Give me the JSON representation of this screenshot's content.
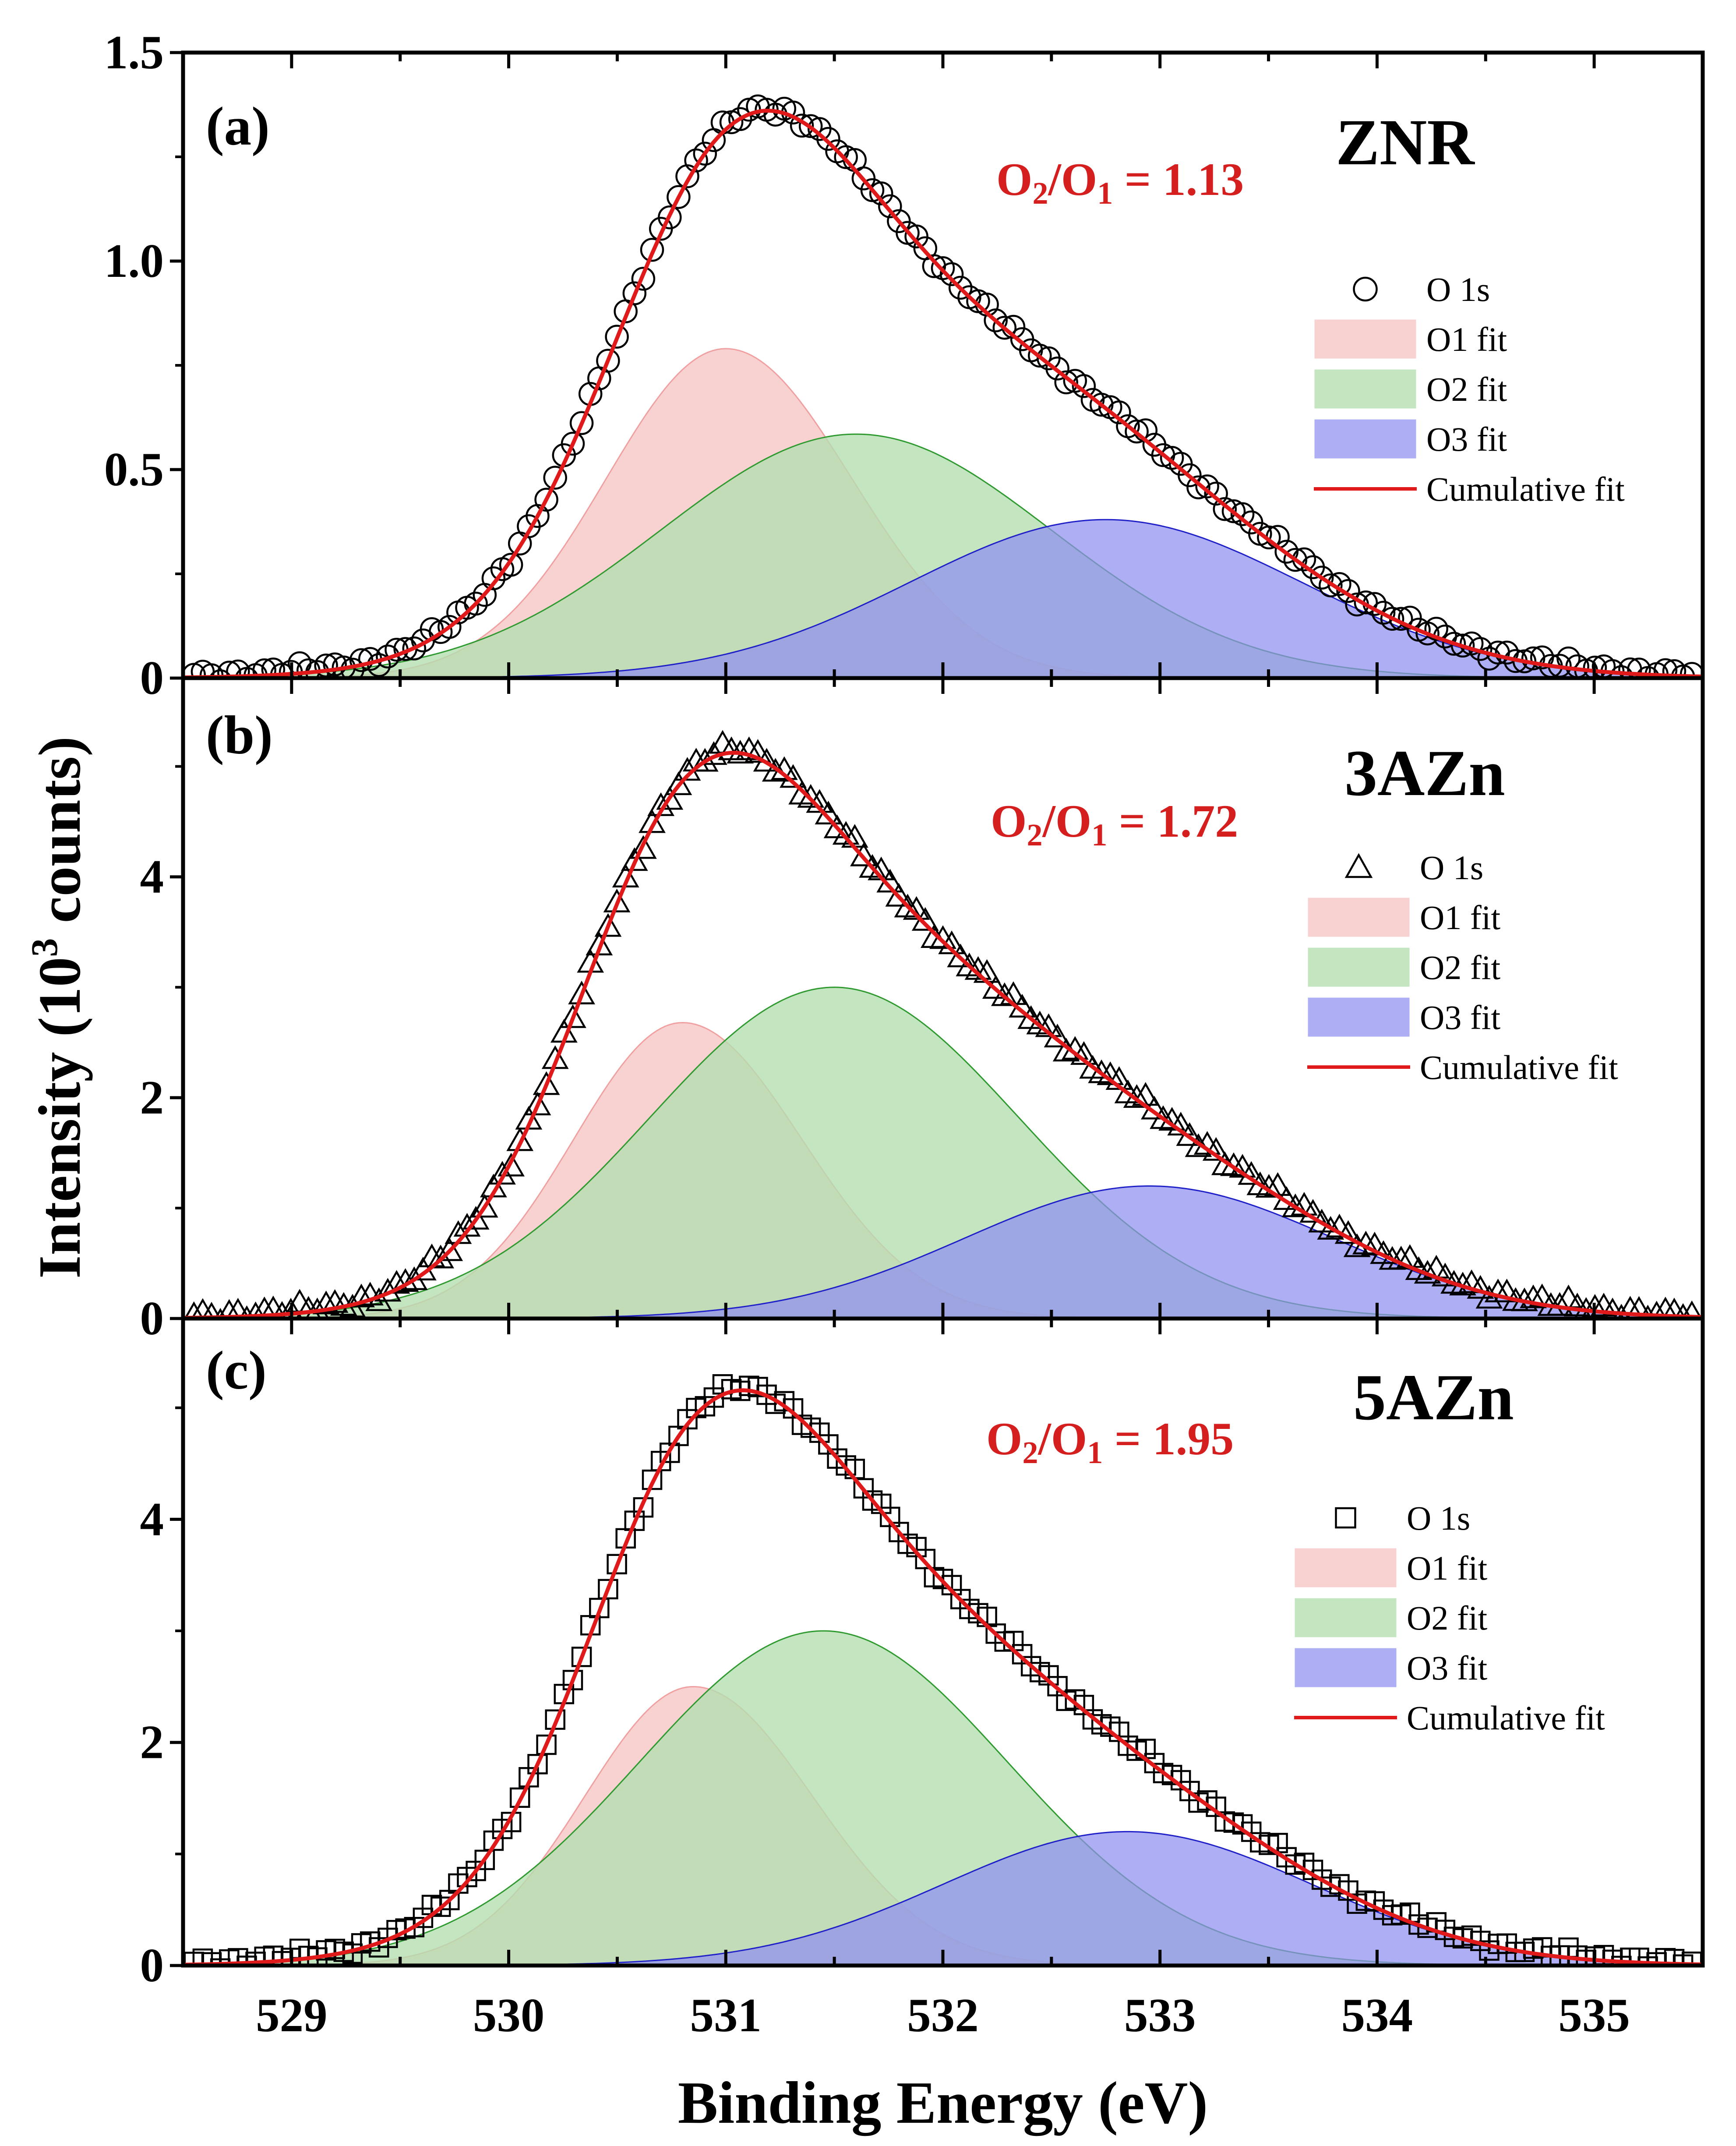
{
  "chart_data": {
    "type": "line",
    "xlabel": "Binding Energy  (eV)",
    "ylabel": "Intensity (10",
    "ylabel_sup": "3",
    "ylabel_end": " counts)",
    "xlim": [
      528.5,
      535.5
    ],
    "xticks": [
      529,
      530,
      531,
      532,
      533,
      534,
      535
    ],
    "series_names": [
      "O 1s",
      "O1 fit",
      "O2 fit",
      "O3 fit",
      "Cumulative fit"
    ],
    "colors": {
      "o1_fill": "#f7c9c9",
      "o1_line": "#f0a0a0",
      "o2_fill": "#b4dfb0",
      "o2_line": "#2f9a2f",
      "o3_fill": "#8f8ff0",
      "o3_line": "#2020c8",
      "cumulative": "#e01a1a",
      "ratio_text": "#d51f1f"
    },
    "panels": [
      {
        "letter": "(a)",
        "sample": "ZNR",
        "ratio_label": {
          "o": "O",
          "sub2": "2",
          "slash": "/O",
          "sub1": "1",
          "value": " = 1.13"
        },
        "ylim": [
          0,
          1.5
        ],
        "yticks": [
          0,
          0.5,
          1.0,
          1.5
        ],
        "ytick_labels": [
          "0",
          "0.5",
          "1.0",
          "1.5"
        ],
        "marker": "circle",
        "peaks": [
          {
            "name": "O1 fit",
            "center": 531.0,
            "height": 0.79,
            "sigma_left": 0.55,
            "sigma_right": 0.58
          },
          {
            "name": "O2 fit",
            "center": 531.6,
            "height": 0.585,
            "sigma_left": 0.9,
            "sigma_right": 0.9
          },
          {
            "name": "O3 fit",
            "center": 532.75,
            "height": 0.38,
            "sigma_left": 0.9,
            "sigma_right": 0.9
          }
        ]
      },
      {
        "letter": "(b)",
        "sample": "3AZn",
        "ratio_label": {
          "o": "O",
          "sub2": "2",
          "slash": "/O",
          "sub1": "1",
          "value": " = 1.72"
        },
        "ylim": [
          0,
          5.8
        ],
        "yticks": [
          0,
          2,
          4
        ],
        "ytick_labels": [
          "0",
          "2",
          "4"
        ],
        "marker": "triangle",
        "peaks": [
          {
            "name": "O1 fit",
            "center": 530.8,
            "height": 2.68,
            "sigma_left": 0.5,
            "sigma_right": 0.55
          },
          {
            "name": "O2 fit",
            "center": 531.5,
            "height": 3.0,
            "sigma_left": 0.85,
            "sigma_right": 0.85
          },
          {
            "name": "O3 fit",
            "center": 532.95,
            "height": 1.2,
            "sigma_left": 0.85,
            "sigma_right": 0.85
          }
        ]
      },
      {
        "letter": "(c)",
        "sample": "5AZn",
        "ratio_label": {
          "o": "O",
          "sub2": "2",
          "slash": "/O",
          "sub1": "1",
          "value": " = 1.95"
        },
        "ylim": [
          0,
          5.8
        ],
        "yticks": [
          0,
          2,
          4
        ],
        "ytick_labels": [
          "0",
          "2",
          "4"
        ],
        "marker": "square",
        "peaks": [
          {
            "name": "O1 fit",
            "center": 530.85,
            "height": 2.5,
            "sigma_left": 0.5,
            "sigma_right": 0.55
          },
          {
            "name": "O2 fit",
            "center": 531.45,
            "height": 3.0,
            "sigma_left": 0.85,
            "sigma_right": 0.85
          },
          {
            "name": "O3 fit",
            "center": 532.85,
            "height": 1.2,
            "sigma_left": 0.85,
            "sigma_right": 0.85
          }
        ]
      }
    ]
  }
}
